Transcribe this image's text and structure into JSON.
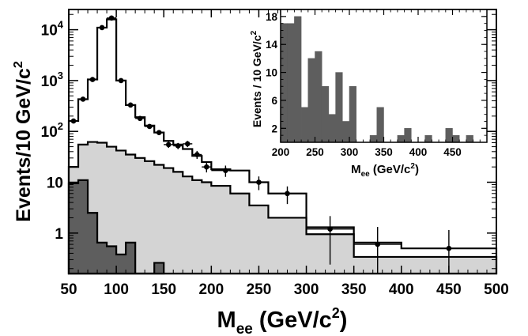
{
  "chart_data": [
    {
      "type": "area",
      "xlabel": "M",
      "xlabel_sub": "ee",
      "xlabel_unit": "(GeV/c",
      "xlabel_sup": "2",
      "xlabel_close": ")",
      "ylabel": "Events/10 GeV/c",
      "ylabel_sup": "2",
      "xlim": [
        50,
        500
      ],
      "ylim": [
        0.16,
        25000
      ],
      "yscale": "log",
      "x_ticks": [
        "50",
        "100",
        "150",
        "200",
        "250",
        "300",
        "350",
        "400",
        "450",
        "500"
      ],
      "y_ticks": [
        {
          "value": 1,
          "label": "1",
          "sup": ""
        },
        {
          "value": 10,
          "label": "10",
          "sup": ""
        },
        {
          "value": 100,
          "label": "10",
          "sup": "2"
        },
        {
          "value": 1000,
          "label": "10",
          "sup": "3"
        },
        {
          "value": 10000,
          "label": "10",
          "sup": "4"
        }
      ],
      "series": [
        {
          "kind": "step",
          "fill": "#ffffff",
          "bin_edges": [
            50,
            60,
            70,
            80,
            90,
            100,
            110,
            120,
            130,
            140,
            150,
            160,
            170,
            180,
            190,
            200,
            220,
            240,
            260,
            300,
            350,
            400,
            500
          ],
          "values": [
            160,
            430,
            1050,
            11000,
            16000,
            1000,
            330,
            190,
            130,
            95,
            65,
            55,
            45,
            33,
            25,
            18,
            17,
            10,
            6,
            1.3,
            0.65,
            0.5
          ]
        },
        {
          "kind": "step",
          "fill": "#d4d4d4",
          "bin_edges": [
            50,
            60,
            70,
            80,
            90,
            100,
            110,
            120,
            130,
            140,
            150,
            160,
            170,
            180,
            190,
            200,
            220,
            240,
            260,
            300,
            350,
            400,
            500
          ],
          "values": [
            20,
            55,
            62,
            60,
            50,
            42,
            35,
            30,
            26,
            22,
            19,
            16,
            13,
            11,
            10,
            8.5,
            6,
            3.5,
            2,
            0.95,
            0.34,
            0.34
          ]
        },
        {
          "kind": "step",
          "fill": "#5e5e5e",
          "bin_edges": [
            50,
            60,
            70,
            80,
            90,
            100,
            110,
            120,
            130,
            140,
            150
          ],
          "values": [
            9.5,
            11,
            2.5,
            0.65,
            0.55,
            0.38,
            0.65,
            0.1,
            0.1,
            0.26
          ]
        },
        {
          "kind": "points",
          "x": [
            55,
            65,
            75,
            85,
            95,
            105,
            115,
            125,
            135,
            145,
            155,
            165,
            175,
            185,
            195,
            215,
            250,
            280,
            325,
            375,
            450
          ],
          "y": [
            160,
            430,
            1050,
            11000,
            17000,
            1000,
            330,
            180,
            125,
            95,
            55,
            52,
            57,
            35,
            20,
            17,
            10,
            6,
            1.2,
            0.6,
            0.5
          ],
          "xerr": [
            5,
            5,
            5,
            5,
            5,
            5,
            5,
            5,
            5,
            5,
            5,
            5,
            5,
            5,
            5,
            15,
            10,
            20,
            25,
            25,
            50
          ],
          "yerr": [
            0.08,
            0.05,
            0.03,
            0.01,
            0.01,
            0.03,
            0.06,
            0.08,
            0.09,
            0.11,
            0.14,
            0.14,
            0.14,
            0.18,
            0.22,
            0.25,
            0.3,
            0.38,
            0.8,
            1.2,
            1.3
          ]
        }
      ]
    },
    {
      "type": "bar",
      "inset": true,
      "ylabel": "Events / 10 GeV/c",
      "ylabel_sup": "2",
      "xlabel": "M",
      "xlabel_sub": "ee",
      "xlabel_unit": "(GeV/c",
      "xlabel_sup": "2",
      "xlabel_close": ")",
      "xlim": [
        200,
        500
      ],
      "ylim": [
        0,
        19
      ],
      "x_ticks": [
        "200",
        "250",
        "300",
        "350",
        "400",
        "450"
      ],
      "y_ticks": [
        "2",
        "6",
        "10",
        "14",
        "18"
      ],
      "bin_edges": [
        200,
        210,
        220,
        230,
        240,
        250,
        260,
        270,
        280,
        290,
        300,
        310,
        320,
        330,
        340,
        350,
        360,
        370,
        380,
        390,
        400,
        410,
        420,
        430,
        440,
        450,
        460,
        470,
        480,
        490,
        500
      ],
      "values": [
        17,
        17,
        18,
        5,
        12,
        13,
        8,
        4,
        10,
        3,
        8,
        0,
        0,
        1,
        5,
        0,
        0,
        1,
        2,
        0,
        0,
        1,
        0,
        0,
        2,
        1,
        0,
        1,
        0,
        0
      ]
    }
  ]
}
